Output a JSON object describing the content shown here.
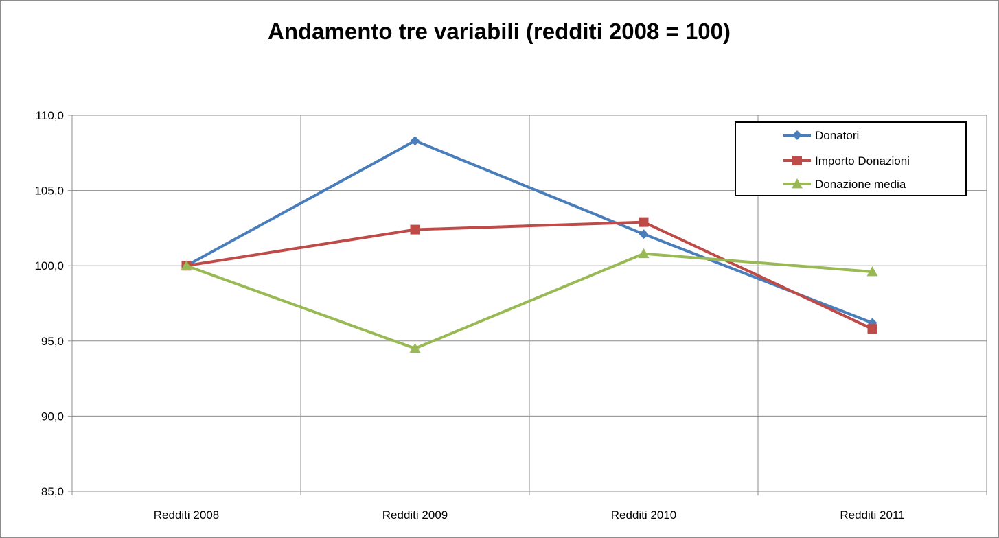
{
  "chart_data": {
    "type": "line",
    "title": "Andamento tre variabili (redditi 2008 = 100)",
    "xlabel": "",
    "ylabel": "",
    "categories": [
      "Redditi 2008",
      "Redditi 2009",
      "Redditi 2010",
      "Redditi 2011"
    ],
    "ylim": [
      85,
      110
    ],
    "yticks": [
      "85,0",
      "90,0",
      "95,0",
      "100,0",
      "105,0",
      "110,0"
    ],
    "ytick_values": [
      85,
      90,
      95,
      100,
      105,
      110
    ],
    "grid": true,
    "legend_position": "top-right",
    "series": [
      {
        "name": "Donatori",
        "values": [
          100.0,
          108.3,
          102.1,
          96.2
        ],
        "color": "#4a7ebb",
        "marker": "diamond"
      },
      {
        "name": "Importo Donazioni",
        "values": [
          100.0,
          102.4,
          102.9,
          95.8
        ],
        "color": "#be4b48",
        "marker": "square"
      },
      {
        "name": "Donazione media",
        "values": [
          100.0,
          94.5,
          100.8,
          99.6
        ],
        "color": "#98b954",
        "marker": "triangle"
      }
    ]
  }
}
